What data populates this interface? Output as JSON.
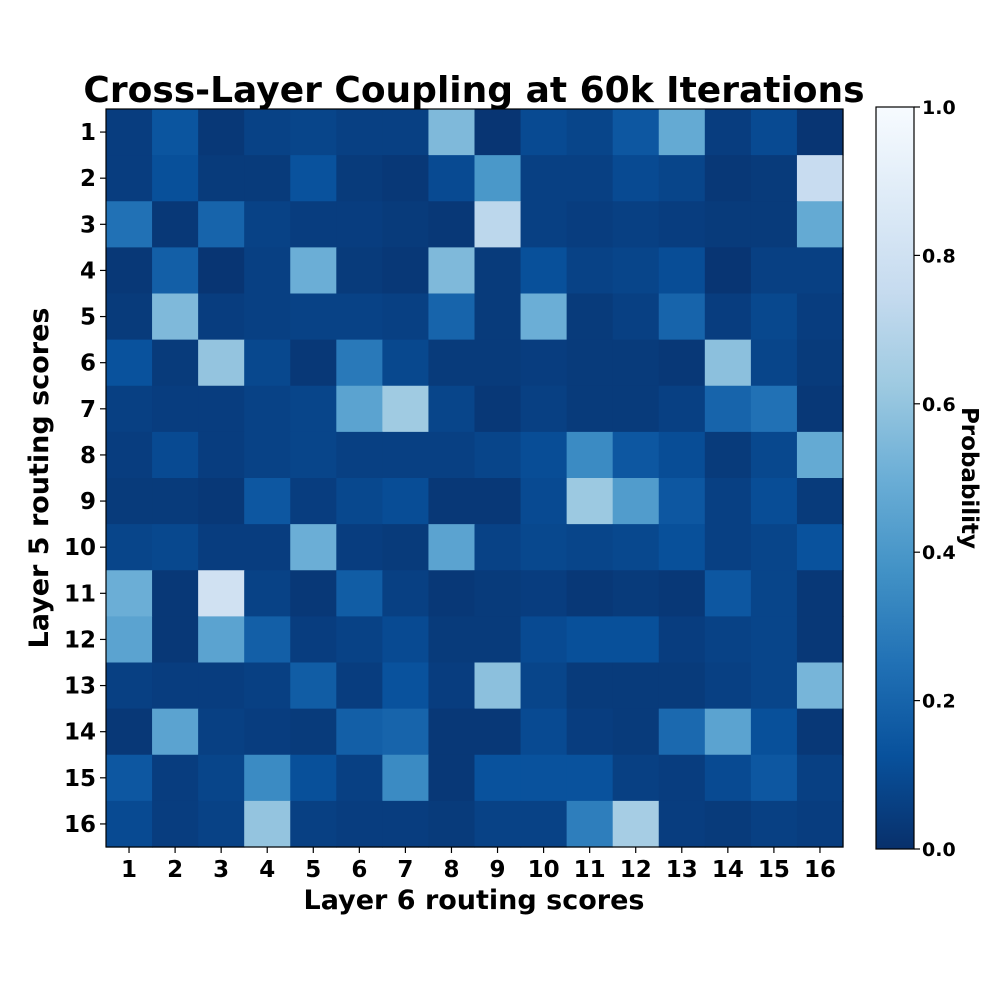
{
  "chart_data": {
    "type": "heatmap",
    "title": "Cross-Layer Coupling at 60k Iterations",
    "xlabel": "Layer 6 routing scores",
    "ylabel": "Layer 5 routing scores",
    "x_categories": [
      "1",
      "2",
      "3",
      "4",
      "5",
      "6",
      "7",
      "8",
      "9",
      "10",
      "11",
      "12",
      "13",
      "14",
      "15",
      "16"
    ],
    "y_categories": [
      "1",
      "2",
      "3",
      "4",
      "5",
      "6",
      "7",
      "8",
      "9",
      "10",
      "11",
      "12",
      "13",
      "14",
      "15",
      "16"
    ],
    "colorbar": {
      "label": "Probability",
      "range": [
        0,
        1
      ],
      "ticks": [
        "0.0",
        "0.2",
        "0.4",
        "0.6",
        "0.8",
        "1.0"
      ],
      "colormap": "Blues_r"
    },
    "values": [
      [
        0.05,
        0.14,
        0.03,
        0.07,
        0.08,
        0.06,
        0.06,
        0.55,
        0.02,
        0.1,
        0.08,
        0.15,
        0.48,
        0.05,
        0.1,
        0.02
      ],
      [
        0.05,
        0.12,
        0.04,
        0.04,
        0.13,
        0.04,
        0.03,
        0.1,
        0.4,
        0.06,
        0.06,
        0.1,
        0.08,
        0.03,
        0.04,
        0.76
      ],
      [
        0.25,
        0.03,
        0.2,
        0.07,
        0.05,
        0.05,
        0.04,
        0.03,
        0.72,
        0.06,
        0.05,
        0.06,
        0.05,
        0.04,
        0.04,
        0.48
      ],
      [
        0.03,
        0.18,
        0.02,
        0.06,
        0.5,
        0.04,
        0.03,
        0.55,
        0.04,
        0.12,
        0.07,
        0.08,
        0.11,
        0.02,
        0.06,
        0.06
      ],
      [
        0.04,
        0.55,
        0.05,
        0.06,
        0.07,
        0.07,
        0.06,
        0.2,
        0.04,
        0.5,
        0.04,
        0.06,
        0.2,
        0.05,
        0.09,
        0.05
      ],
      [
        0.13,
        0.04,
        0.6,
        0.09,
        0.03,
        0.28,
        0.09,
        0.04,
        0.04,
        0.05,
        0.04,
        0.04,
        0.03,
        0.58,
        0.08,
        0.04
      ],
      [
        0.06,
        0.05,
        0.05,
        0.07,
        0.08,
        0.45,
        0.63,
        0.08,
        0.03,
        0.06,
        0.04,
        0.04,
        0.06,
        0.2,
        0.25,
        0.03
      ],
      [
        0.05,
        0.1,
        0.05,
        0.07,
        0.08,
        0.06,
        0.06,
        0.06,
        0.08,
        0.11,
        0.35,
        0.15,
        0.11,
        0.04,
        0.09,
        0.48
      ],
      [
        0.04,
        0.04,
        0.03,
        0.15,
        0.05,
        0.09,
        0.11,
        0.03,
        0.03,
        0.1,
        0.62,
        0.42,
        0.15,
        0.06,
        0.11,
        0.04
      ],
      [
        0.08,
        0.09,
        0.05,
        0.05,
        0.5,
        0.05,
        0.04,
        0.45,
        0.07,
        0.09,
        0.08,
        0.09,
        0.12,
        0.06,
        0.08,
        0.13
      ],
      [
        0.5,
        0.03,
        0.8,
        0.07,
        0.03,
        0.17,
        0.06,
        0.03,
        0.04,
        0.05,
        0.03,
        0.04,
        0.03,
        0.15,
        0.08,
        0.03
      ],
      [
        0.45,
        0.03,
        0.45,
        0.18,
        0.05,
        0.07,
        0.1,
        0.04,
        0.04,
        0.1,
        0.12,
        0.12,
        0.05,
        0.07,
        0.08,
        0.03
      ],
      [
        0.06,
        0.05,
        0.05,
        0.06,
        0.17,
        0.05,
        0.13,
        0.05,
        0.58,
        0.08,
        0.04,
        0.04,
        0.04,
        0.06,
        0.08,
        0.53
      ],
      [
        0.03,
        0.45,
        0.06,
        0.05,
        0.04,
        0.18,
        0.2,
        0.03,
        0.03,
        0.1,
        0.05,
        0.04,
        0.22,
        0.45,
        0.12,
        0.03
      ],
      [
        0.15,
        0.05,
        0.08,
        0.35,
        0.12,
        0.06,
        0.35,
        0.03,
        0.13,
        0.13,
        0.13,
        0.06,
        0.05,
        0.1,
        0.15,
        0.06
      ],
      [
        0.1,
        0.05,
        0.07,
        0.6,
        0.06,
        0.05,
        0.05,
        0.04,
        0.07,
        0.07,
        0.3,
        0.65,
        0.05,
        0.04,
        0.06,
        0.05
      ]
    ]
  }
}
